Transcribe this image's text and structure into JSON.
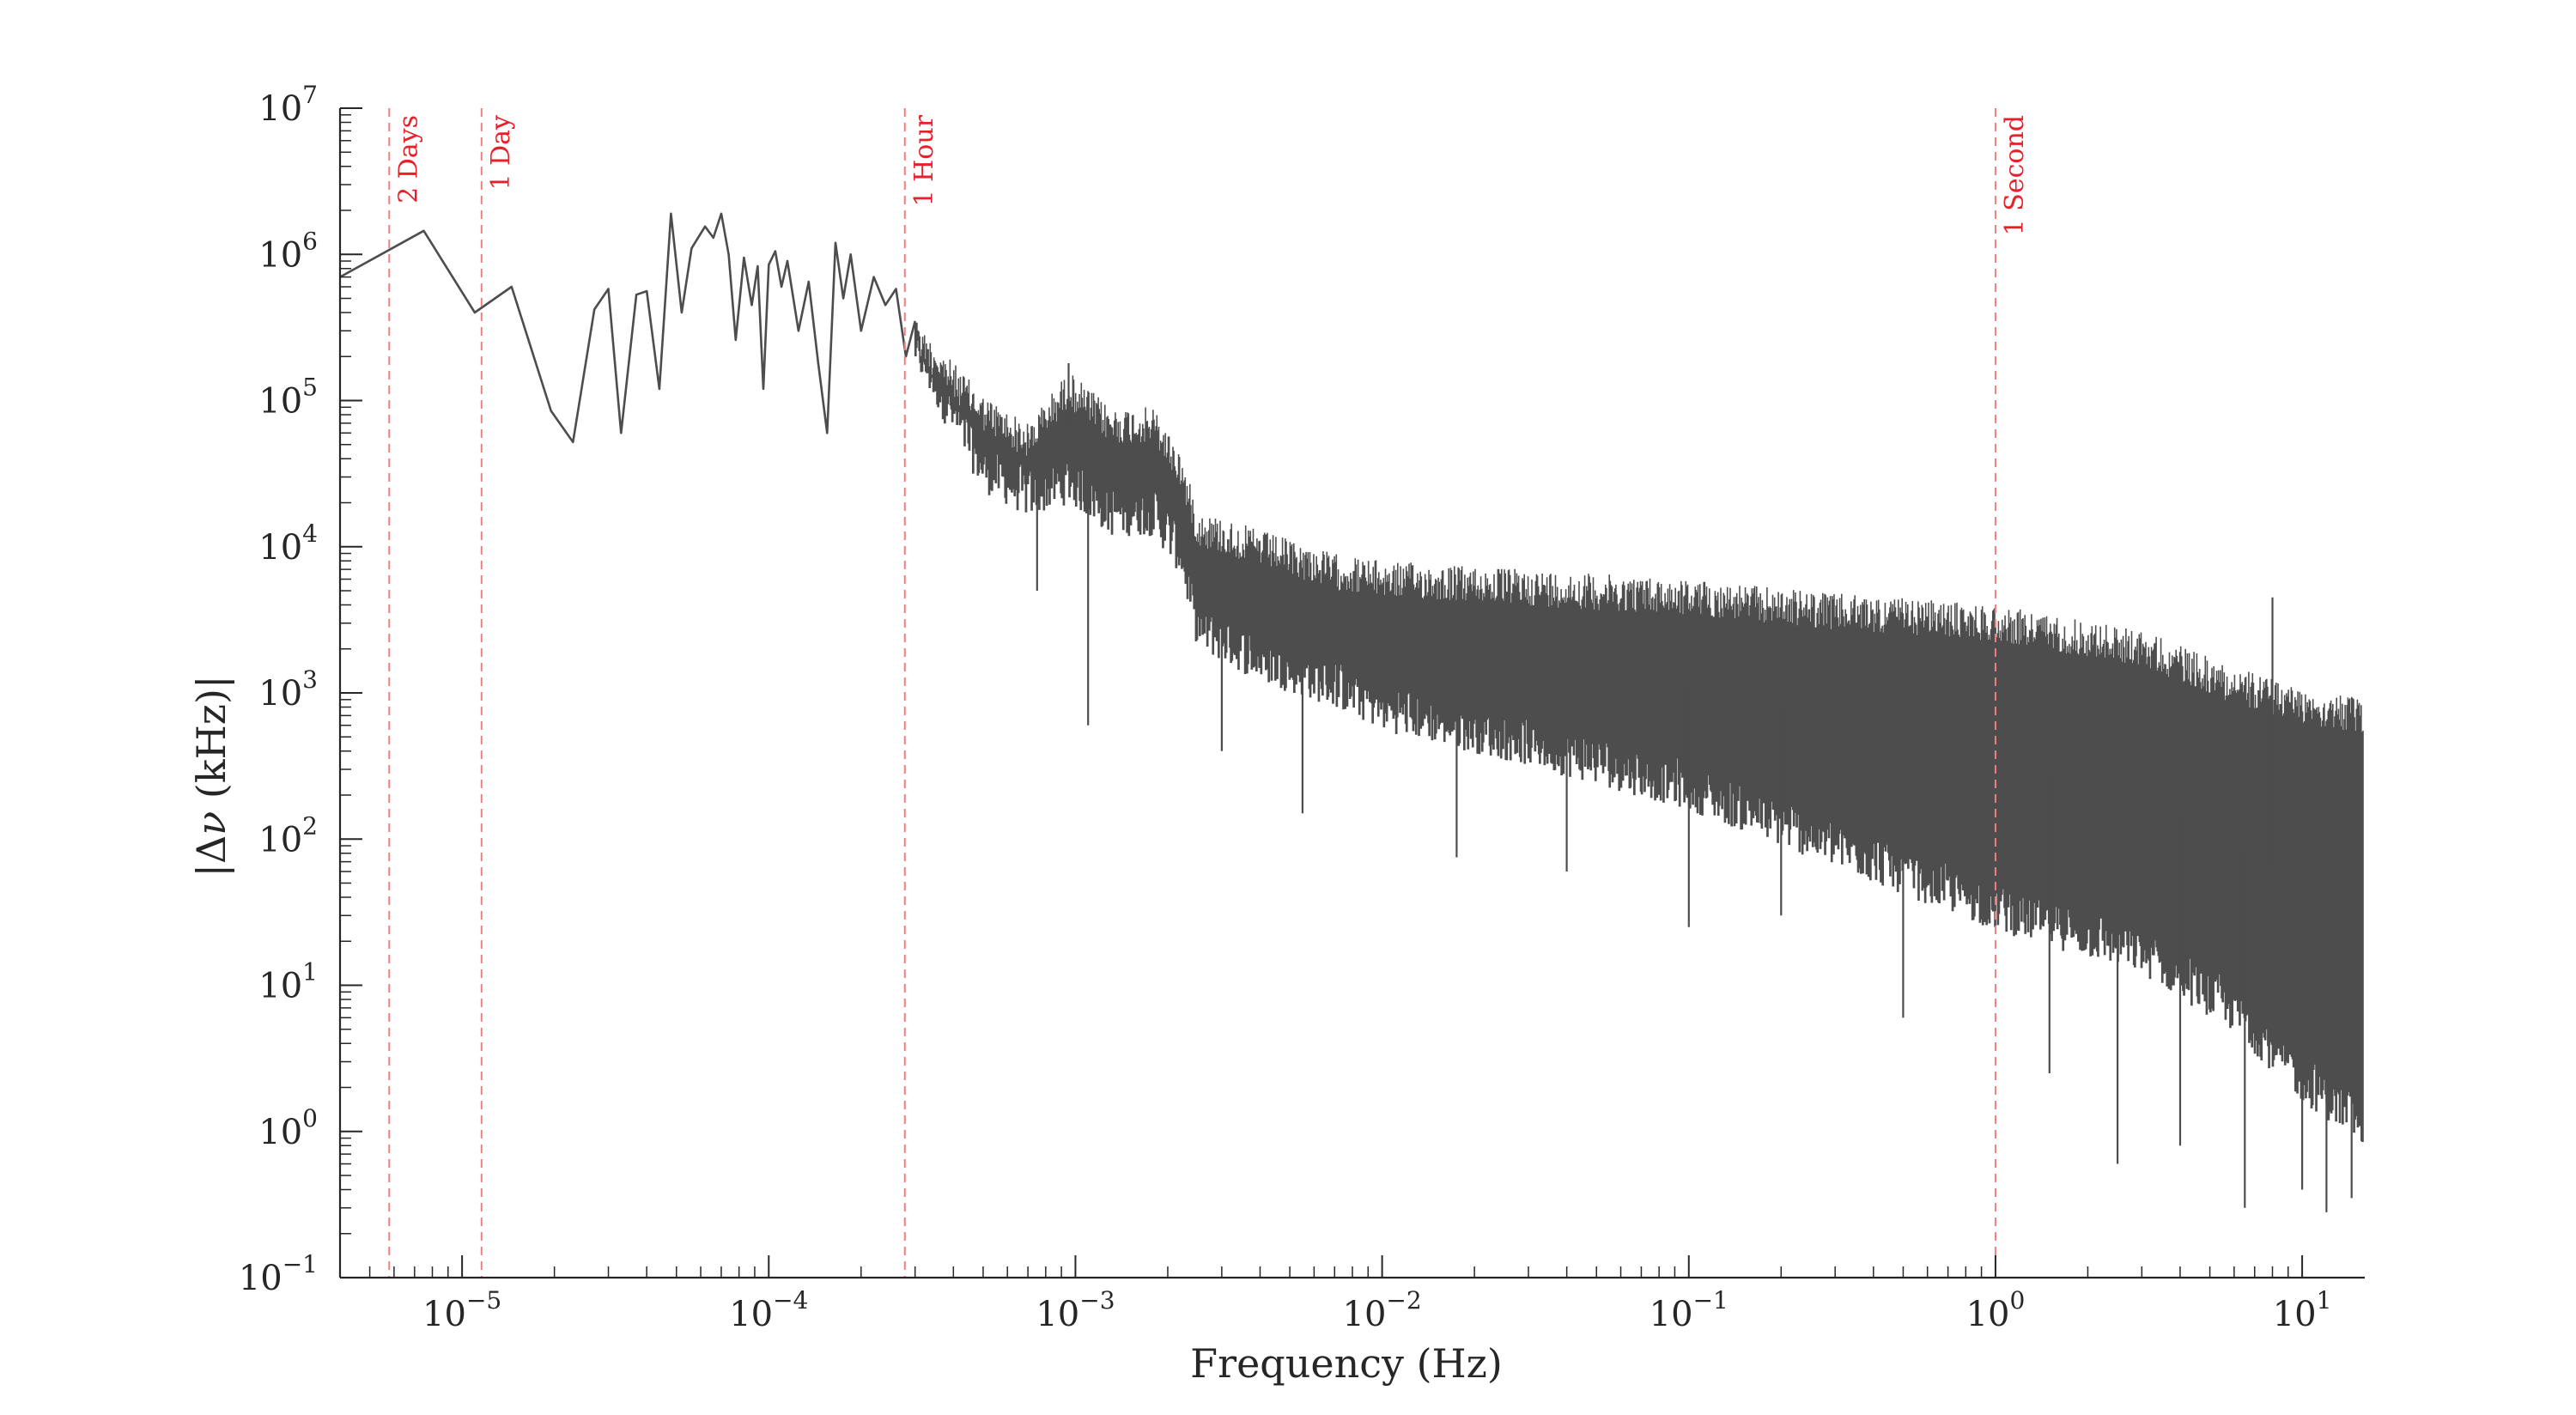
{
  "chart_data": {
    "type": "line",
    "title": "",
    "xlabel": "Frequency (Hz)",
    "ylabel_parts": {
      "pre": "|Δ",
      "var": "ν",
      "post": " (kHz)|"
    },
    "xscale": "log",
    "yscale": "log",
    "xlim": [
      4e-06,
      16
    ],
    "ylim": [
      0.1,
      10000000
    ],
    "x_ticks": [
      {
        "value": 1e-05,
        "base": "10",
        "exp": "−5"
      },
      {
        "value": 0.0001,
        "base": "10",
        "exp": "−4"
      },
      {
        "value": 0.001,
        "base": "10",
        "exp": "−3"
      },
      {
        "value": 0.01,
        "base": "10",
        "exp": "−2"
      },
      {
        "value": 0.1,
        "base": "10",
        "exp": "−1"
      },
      {
        "value": 1,
        "base": "10",
        "exp": "0"
      },
      {
        "value": 10,
        "base": "10",
        "exp": "1"
      }
    ],
    "y_ticks": [
      {
        "value": 0.1,
        "base": "10",
        "exp": "−1"
      },
      {
        "value": 1,
        "base": "10",
        "exp": "0"
      },
      {
        "value": 10,
        "base": "10",
        "exp": "1"
      },
      {
        "value": 100,
        "base": "10",
        "exp": "2"
      },
      {
        "value": 1000,
        "base": "10",
        "exp": "3"
      },
      {
        "value": 10000,
        "base": "10",
        "exp": "4"
      },
      {
        "value": 100000,
        "base": "10",
        "exp": "5"
      },
      {
        "value": 1000000,
        "base": "10",
        "exp": "6"
      },
      {
        "value": 10000000,
        "base": "10",
        "exp": "7"
      }
    ],
    "markers": [
      {
        "label": "2 Days",
        "x": 5.787e-06
      },
      {
        "label": "1 Day",
        "x": 1.1574e-05
      },
      {
        "label": "1 Hour",
        "x": 0.0002778
      },
      {
        "label": "1 Second",
        "x": 1.0
      }
    ],
    "series": [
      {
        "line_color": "#4d4d4d",
        "low_freq_points": [
          [
            4e-06,
            700000
          ],
          [
            7.5e-06,
            1450000
          ],
          [
            1.1e-05,
            400000
          ],
          [
            1.45e-05,
            600000
          ],
          [
            1.95e-05,
            85000
          ],
          [
            2.3e-05,
            52000
          ],
          [
            2.7e-05,
            420000
          ],
          [
            3e-05,
            580000
          ],
          [
            3.3e-05,
            60000
          ],
          [
            3.7e-05,
            530000
          ],
          [
            4e-05,
            560000
          ],
          [
            4.4e-05,
            120000
          ],
          [
            4.8e-05,
            1900000
          ],
          [
            5.2e-05,
            400000
          ],
          [
            5.6e-05,
            1100000
          ],
          [
            6.2e-05,
            1550000
          ],
          [
            6.6e-05,
            1300000
          ],
          [
            7e-05,
            1900000
          ],
          [
            7.4e-05,
            1000000
          ],
          [
            7.8e-05,
            260000
          ],
          [
            8.3e-05,
            950000
          ],
          [
            8.8e-05,
            450000
          ],
          [
            9.2e-05,
            830000
          ],
          [
            9.6e-05,
            120000
          ],
          [
            0.0001,
            850000
          ],
          [
            0.000105,
            1050000
          ],
          [
            0.00011,
            600000
          ],
          [
            0.000115,
            900000
          ],
          [
            0.000125,
            300000
          ],
          [
            0.000135,
            650000
          ],
          [
            0.000145,
            180000
          ],
          [
            0.000155,
            60000
          ],
          [
            0.000165,
            1200000
          ],
          [
            0.000175,
            500000
          ],
          [
            0.000185,
            1000000
          ],
          [
            0.0002,
            300000
          ],
          [
            0.00022,
            700000
          ],
          [
            0.00024,
            450000
          ],
          [
            0.00026,
            580000
          ],
          [
            0.00028,
            200000
          ],
          [
            0.0003,
            350000
          ]
        ],
        "upper_envelope": [
          [
            0.0003,
            350000
          ],
          [
            0.0005,
            110000
          ],
          [
            0.0007,
            70000
          ],
          [
            0.00095,
            160000
          ],
          [
            0.0013,
            90000
          ],
          [
            0.0018,
            90000
          ],
          [
            0.0022,
            45000
          ],
          [
            0.0025,
            18000
          ],
          [
            0.004,
            13000
          ],
          [
            0.007,
            9000
          ],
          [
            0.01,
            8000
          ],
          [
            0.03,
            7000
          ],
          [
            0.1,
            6000
          ],
          [
            0.3,
            4800
          ],
          [
            1.0,
            4000
          ],
          [
            3.0,
            2700
          ],
          [
            6.0,
            1500
          ],
          [
            10,
            1100
          ],
          [
            16,
            900
          ]
        ],
        "lower_envelope": [
          [
            0.0003,
            200000
          ],
          [
            0.0005,
            30000
          ],
          [
            0.0007,
            20000
          ],
          [
            0.00095,
            25000
          ],
          [
            0.0013,
            15000
          ],
          [
            0.0018,
            15000
          ],
          [
            0.0022,
            8000
          ],
          [
            0.0025,
            2500
          ],
          [
            0.004,
            1500
          ],
          [
            0.007,
            1000
          ],
          [
            0.01,
            700
          ],
          [
            0.03,
            400
          ],
          [
            0.1,
            200
          ],
          [
            0.3,
            80
          ],
          [
            1.0,
            30
          ],
          [
            3.0,
            15
          ],
          [
            6.0,
            6
          ],
          [
            10,
            2
          ],
          [
            16,
            1
          ]
        ],
        "spikes": [
          {
            "x": 0.00095,
            "y": 180000
          },
          {
            "x": 0.0011,
            "y": 600
          },
          {
            "x": 0.00075,
            "y": 5000
          },
          {
            "x": 0.003,
            "y": 400
          },
          {
            "x": 0.0055,
            "y": 150
          },
          {
            "x": 0.0175,
            "y": 75
          },
          {
            "x": 0.04,
            "y": 60
          },
          {
            "x": 0.1,
            "y": 25
          },
          {
            "x": 0.2,
            "y": 30
          },
          {
            "x": 0.5,
            "y": 6
          },
          {
            "x": 1.5,
            "y": 2.5
          },
          {
            "x": 2.5,
            "y": 0.6
          },
          {
            "x": 4.0,
            "y": 0.8
          },
          {
            "x": 6.5,
            "y": 0.3
          },
          {
            "x": 8.0,
            "y": 4500
          },
          {
            "x": 10.0,
            "y": 0.4
          },
          {
            "x": 12.0,
            "y": 0.28
          },
          {
            "x": 14.5,
            "y": 0.35
          }
        ]
      }
    ],
    "grid": false,
    "legend": "none"
  }
}
